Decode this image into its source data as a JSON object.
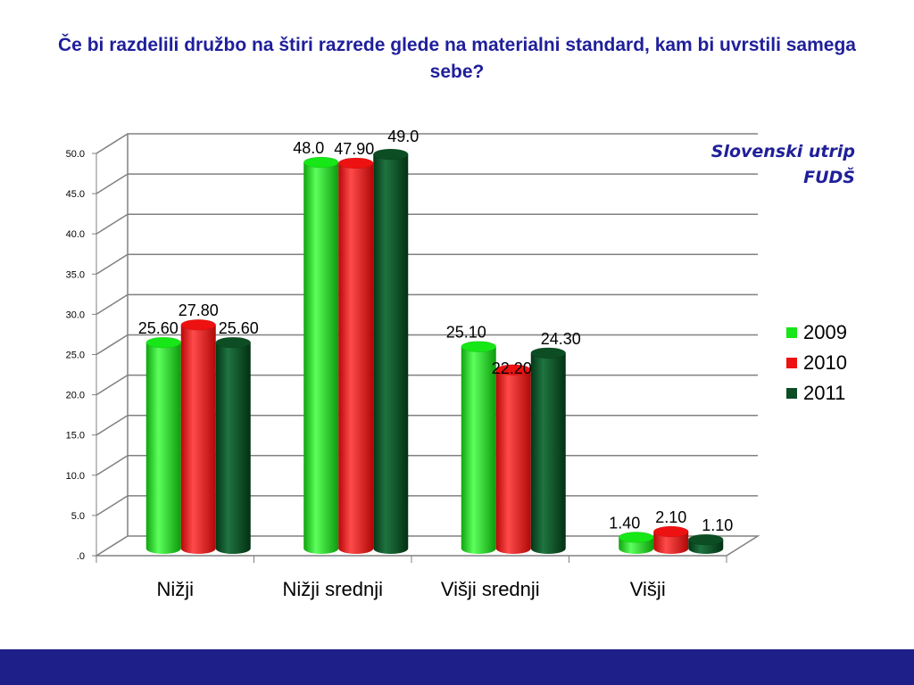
{
  "slide": {
    "title": "Če bi razdelili družbo na štiri razrede glede na materialni standard, kam bi uvrstili samega sebe?",
    "source_line1": "Slovenski utrip",
    "source_line2": "FUDŠ"
  },
  "colors": {
    "title": "#1f1f9a",
    "footer": "#1f1f8a",
    "grid": "#808080"
  },
  "chart_data": {
    "type": "bar",
    "categories": [
      "Nižji",
      "Nižji srednji",
      "Višji srednji",
      "Višji"
    ],
    "series": [
      {
        "name": "2009",
        "color": "#17e617",
        "values": [
          25.6,
          48.0,
          25.1,
          1.4
        ],
        "labels": [
          "25.60",
          "48.0",
          "25.10",
          "1.40"
        ]
      },
      {
        "name": "2010",
        "color": "#ee1111",
        "values": [
          27.8,
          47.9,
          22.2,
          2.1
        ],
        "labels": [
          "27.80",
          "47.90",
          "22.20",
          "2.10"
        ]
      },
      {
        "name": "2011",
        "color": "#0c4d23",
        "values": [
          25.6,
          49.0,
          24.3,
          1.1
        ],
        "labels": [
          "25.60",
          "49.0",
          "24.30",
          "1.10"
        ]
      }
    ],
    "y_ticks": [
      ".0",
      "5.0",
      "10.0",
      "15.0",
      "20.0",
      "25.0",
      "30.0",
      "35.0",
      "40.0",
      "45.0",
      "50.0"
    ],
    "ylim": [
      0,
      50
    ],
    "grid": true,
    "legend_position": "right",
    "xlabel": "",
    "ylabel": ""
  }
}
